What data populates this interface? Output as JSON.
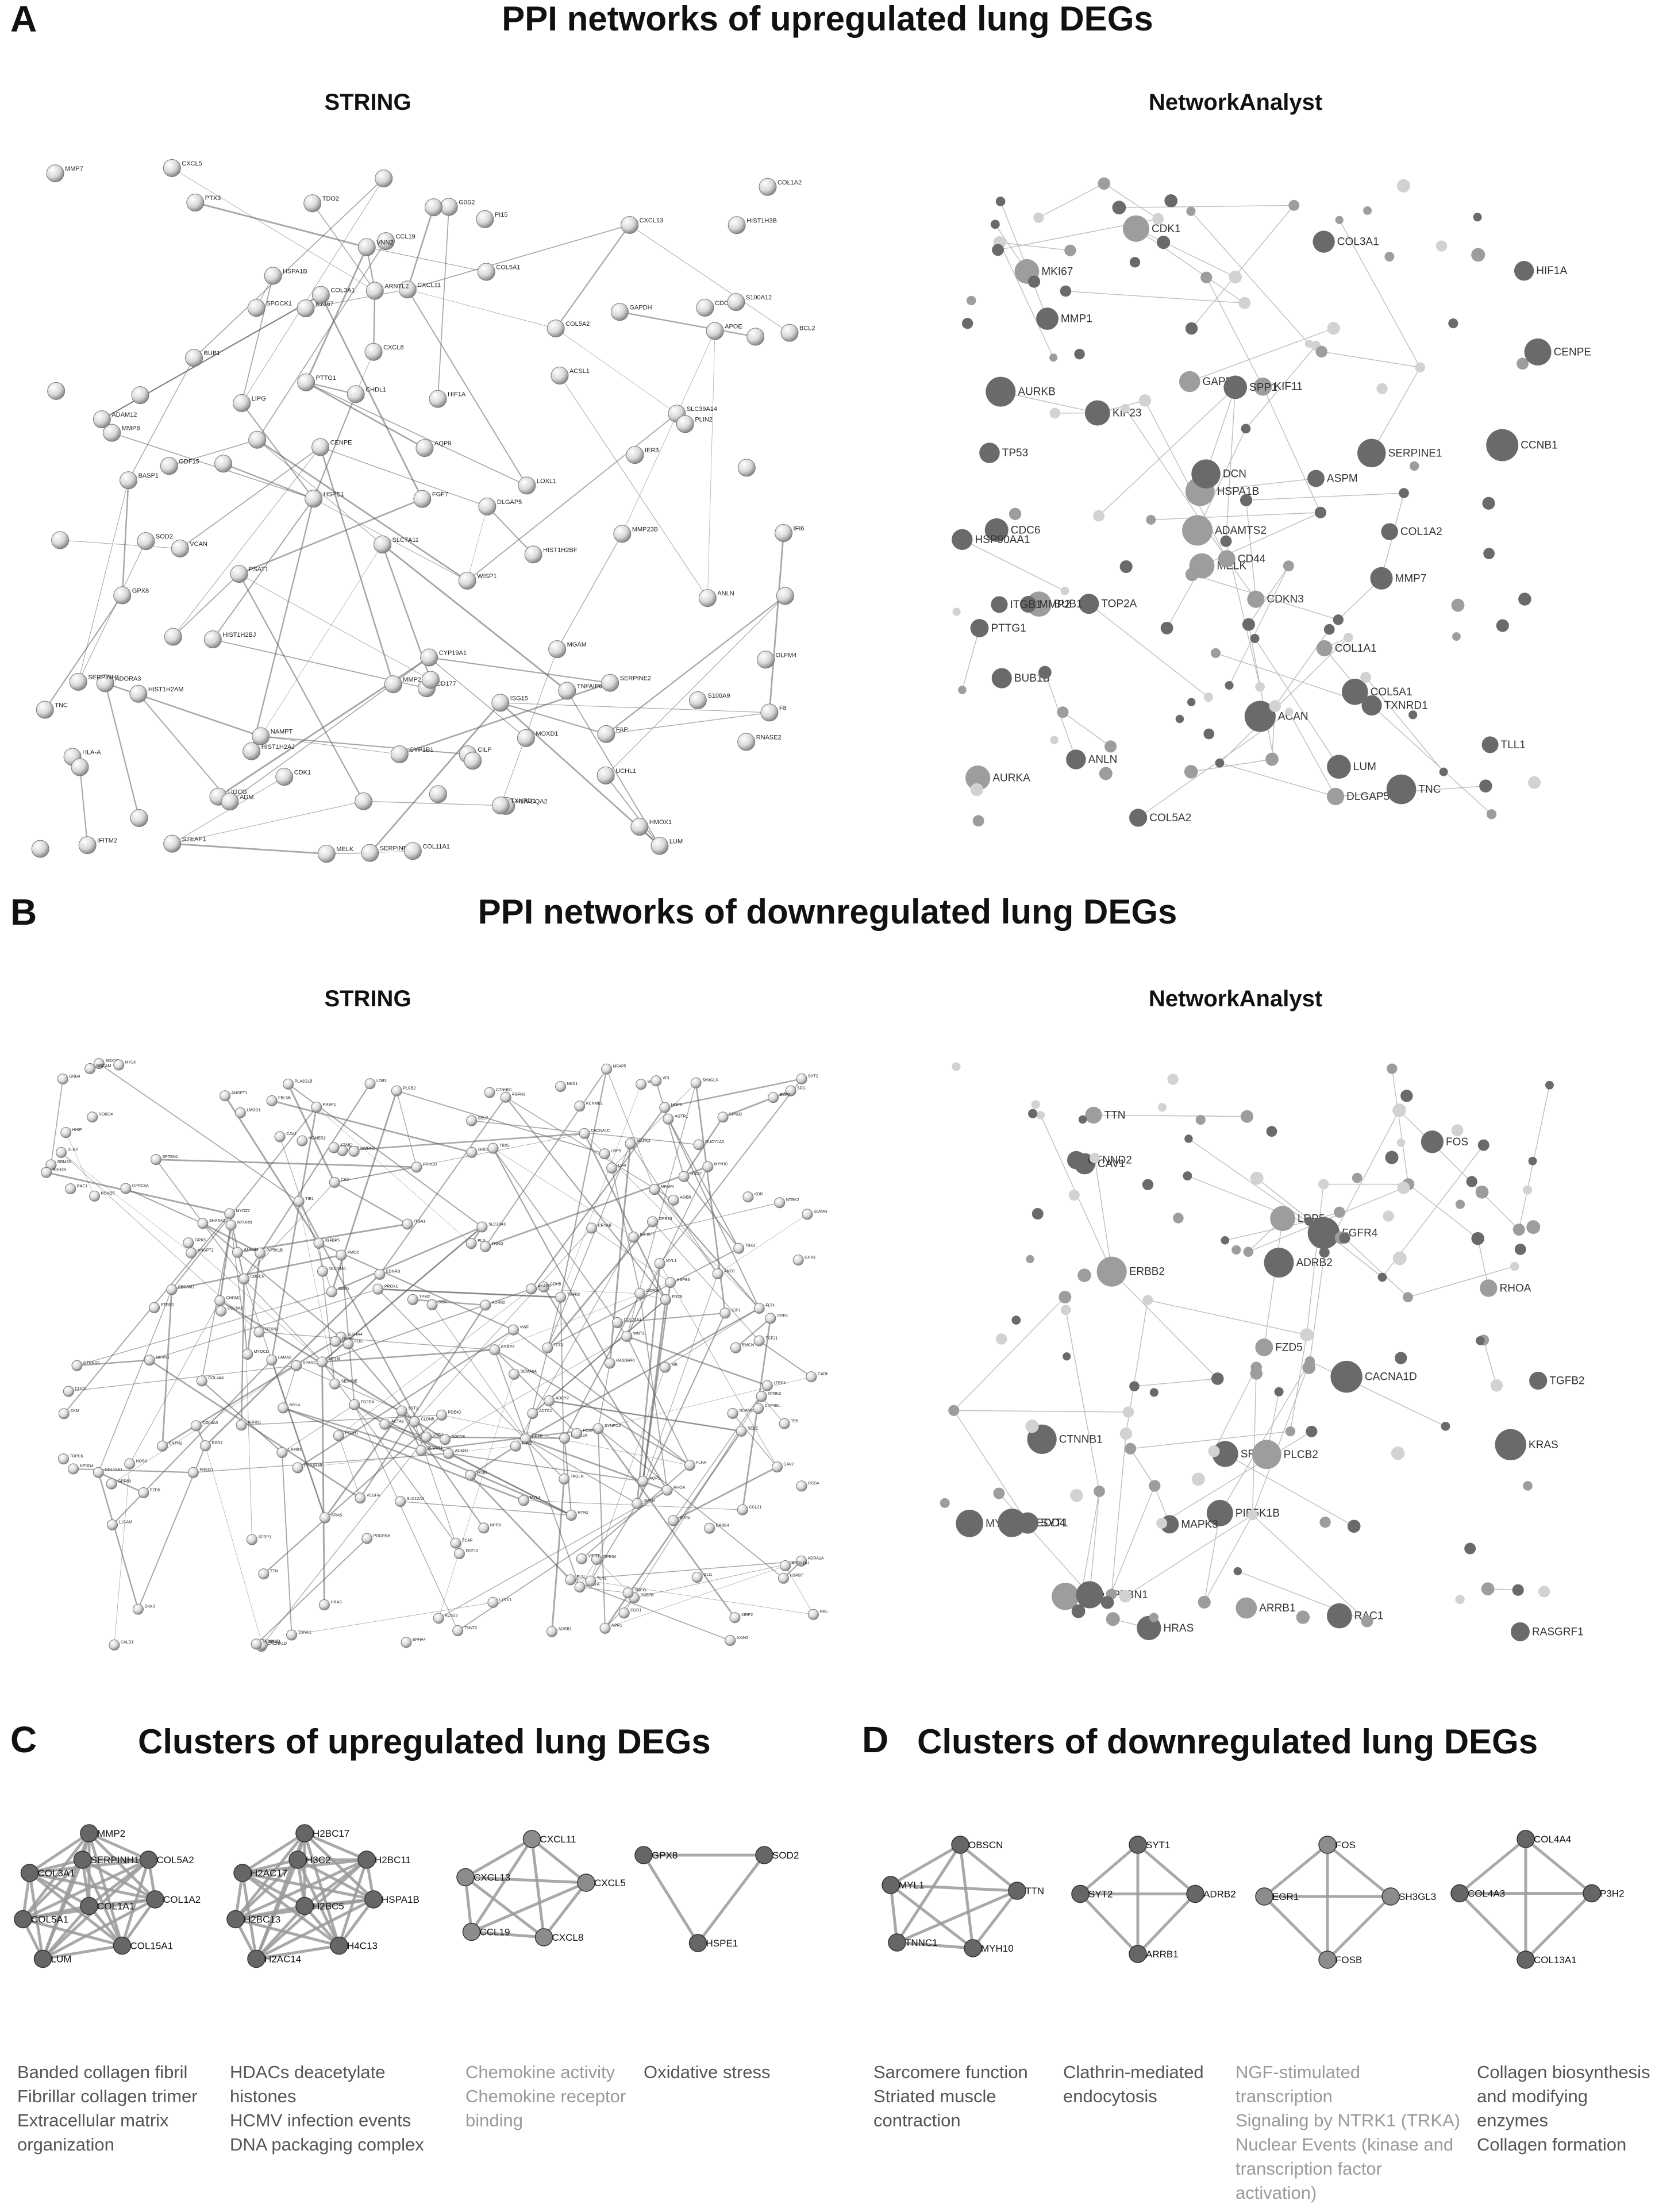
{
  "panels": {
    "A": {
      "letter": "A",
      "title": "PPI networks of upregulated lung DEGs",
      "left_title": "STRING",
      "right_title": "NetworkAnalyst"
    },
    "B": {
      "letter": "B",
      "title": "PPI networks of downregulated lung DEGs",
      "left_title": "STRING",
      "right_title": "NetworkAnalyst"
    },
    "C": {
      "letter": "C",
      "title": "Clusters of upregulated lung DEGs"
    },
    "D": {
      "letter": "D",
      "title": "Clusters of downregulated lung DEGs"
    }
  },
  "string_up_labels": [
    "UGCG",
    "HLA-DQA2",
    "HLA-A",
    "TDO2",
    "IFITM2",
    "IFI6",
    "SLC7A11",
    "ISG15",
    "IER3",
    "CYP1B1",
    "HSPE1",
    "ADORA3",
    "SLC39A14",
    "STEAP1",
    "BASP1",
    "CCL19",
    "GPX8",
    "CXCL13",
    "TXNRD1",
    "PSAT1",
    "PTTG1",
    "CYP19A1",
    "HSPA1B",
    "ANLN",
    "MELK",
    "CXCL11",
    "ADM",
    "DLGAP5",
    "GDF15",
    "CXCL5",
    "TNFAIP6",
    "SOD2",
    "UCHL1",
    "CENPE",
    "MOXD1",
    "FGF7",
    "HMOX1",
    "CDK1",
    "BUB1",
    "OLFM4",
    "PTX3",
    "NAMPT",
    "GAPDH",
    "CD177",
    "CHDL1",
    "MKI67",
    "CDC6",
    "MGAM",
    "CXCL8",
    "HIF1A",
    "MMP8",
    "MMP2",
    "S100A9",
    "HIST1H2BJ",
    "PI15",
    "FAP",
    "CILP",
    "SERPINH1",
    "SERPINE1",
    "S100A12",
    "HIST1H2AJ",
    "LUM",
    "COL1A2",
    "APOE",
    "BCL2",
    "RNASE2",
    "HIST1H2BF",
    "COL3A1",
    "MMP7",
    "HIST1H2AM",
    "ADAM12",
    "COL11A1",
    "VCAN",
    "AQP9",
    "G0S2",
    "COL5A2",
    "ARNTL2",
    "SERPINE2",
    "VNN2",
    "HIST1H3B",
    "COL5A1",
    "PLIN2",
    "LOXL1",
    "LIPG",
    "ACSL1",
    "TNC",
    "WISP1",
    "MMP23B",
    "SPOCK1",
    "F8"
  ],
  "na_up_labels": [
    "KIF23",
    "TXNRD1",
    "ANLN",
    "BUB1B",
    "TOP2A",
    "HSPA1B",
    "SERPINE1",
    "AURKB",
    "KIF11",
    "CDK1",
    "CDC6",
    "HIF1A",
    "BUB1",
    "TP53",
    "ASPM",
    "PTTG1",
    "CCNB1",
    "HSP90AA1",
    "MELK",
    "DLGAP5",
    "GAPDH",
    "CENPE",
    "MKI67",
    "AURKA",
    "CDKN3",
    "MMP2",
    "MMP7",
    "MMP1",
    "ACAN",
    "COL1A1",
    "DCN",
    "CD44",
    "TNC",
    "LUM",
    "ADAMTS2",
    "COL1A2",
    "SPP1",
    "ITGB1",
    "COL5A1",
    "TLL1",
    "COL3A1",
    "COL5A2"
  ],
  "na_down_labels": [
    "TTN",
    "MYH10",
    "ERBB2",
    "RHOA",
    "PIP5K1B",
    "RASGRF1",
    "RAC1",
    "LRP5",
    "CAV1",
    "CTNNB1",
    "KRAS",
    "FOS",
    "FZD5",
    "SRC",
    "HRAS",
    "CTNND2",
    "PLCB2",
    "EGR1",
    "SPTBN1",
    "MAPK3",
    "ARRB1",
    "NEDD4",
    "TGFB2",
    "FGFR4",
    "ADRB2",
    "SYT1",
    "CACNA1D"
  ],
  "string_down_labels": [
    "MTURN",
    "KRBP1",
    "GPR34",
    "GPR83",
    "GPRC5A",
    "GPR83",
    "SLC44A1",
    "ADCY8",
    "FOS",
    "TGFB2",
    "FZD5",
    "ERBB2",
    "CAV1",
    "CTNNB1",
    "HRAS",
    "RHOA",
    "SRC",
    "KRAS",
    "RAC1",
    "MYH10",
    "TTN",
    "EGR1",
    "LRP5",
    "SYT1",
    "ADRB2",
    "ARRB1",
    "PLCB2",
    "MAPK3",
    "NEDD4",
    "FGFR4",
    "CACNA1D",
    "SPTBN1",
    "CTNND2",
    "PIP5K1B",
    "RASGRF1",
    "COL4A4",
    "COL4A3",
    "P3H2",
    "COL13A1",
    "SYT2",
    "OBSCN",
    "MYL1",
    "TNNC1",
    "F0SB",
    "SH3GL3",
    "CDH5",
    "PECAM1",
    "EMCN",
    "TEK",
    "KDR",
    "VWF",
    "NOS3",
    "TIE1",
    "ACKR1",
    "CLDN5",
    "SELE",
    "SELP",
    "AQP1",
    "CA4",
    "EDNRB",
    "SOX17",
    "ROBO4",
    "LYVE1",
    "PROX1",
    "FLT4",
    "CCL21",
    "MMRN1",
    "TFF3",
    "STAB2",
    "SPARCL1",
    "DES",
    "ACTC1",
    "MYOCD",
    "CNN1",
    "TAGLN",
    "SMTN",
    "LMOD1",
    "SYNPO2",
    "PLN",
    "KCNMB1",
    "GUCY1A3",
    "NPR1",
    "AGTR1",
    "ADRA1A",
    "CHRM2",
    "GRIA1",
    "NRXN1",
    "CNTN1",
    "NCAM1",
    "L1CAM",
    "NRCAM",
    "CADM2",
    "PTPRD",
    "DLG2",
    "GRID2",
    "SHANK2",
    "HOMER2",
    "CAMK2A",
    "PRKCB",
    "PPP1R1B",
    "RGS4",
    "RGS7",
    "GNG2",
    "GNB4",
    "ADCY2",
    "PDE4D",
    "PDE7B",
    "AKAP6",
    "RYR2",
    "CACNA1C",
    "KCNJ3",
    "KCNQ5",
    "SCN7A",
    "ANO1",
    "TRPC6",
    "PIEZO2",
    "ITPR1",
    "ATP2B4",
    "SLC8A1",
    "SLC4A4",
    "SLC12A2",
    "SLC26A3",
    "CFTR",
    "SCNN1G",
    "CLIC5",
    "AGER",
    "HOPX",
    "CAV2",
    "EMP2",
    "RTKN2",
    "SEMA3B",
    "SEMA3E",
    "SEMA6A",
    "EFNB2",
    "EPHA4",
    "NTRK2",
    "NTRK3",
    "ERBB4",
    "PDGFRA",
    "FGFR2",
    "FGF10",
    "WNT2",
    "SFRP1",
    "DKK3",
    "FRZB",
    "NKD1",
    "AXIN2",
    "TCF21",
    "FOXF1",
    "TBX4",
    "TBX5",
    "HHIP",
    "PTCH1",
    "GLI1",
    "IGF1",
    "IGFBP5",
    "IGFBP7",
    "ANGPT1",
    "ANGPT2",
    "VEGFA",
    "VIPR1",
    "ADRB1",
    "GRK5",
    "PRKG1",
    "MYLK",
    "ACTA2",
    "CALD1",
    "TPM2",
    "FLNA",
    "VCL",
    "TLN1",
    "ITGA8",
    "ITGA1",
    "LAMA2",
    "LAMB1",
    "COL6A6",
    "COL21A1",
    "ELN",
    "FBLN5",
    "MFAP4",
    "LTBP4",
    "HSPB7",
    "CRYAB",
    "SNCG",
    "CKM",
    "MB",
    "TNNT2",
    "TNNI3",
    "MYL3",
    "MYL4",
    "NPPA",
    "NPPB",
    "CORIN",
    "RBM20",
    "CSRP3",
    "LDB3",
    "TCAP",
    "MYOZ2",
    "FHL2",
    "XIRP2",
    "SMPX",
    "HSPB6",
    "ALDH1A1",
    "CYP4B1",
    "FMO2",
    "GPX3",
    "MT1M",
    "ADH1B",
    "PLA2G1B",
    "MFAP5",
    "CA2"
  ],
  "clusters_up": [
    {
      "id": "c1",
      "nodes": [
        "MMP2",
        "COL5A2",
        "COL3A1",
        "SERPINH1",
        "COL1A2",
        "COL5A1",
        "COL1A1",
        "LUM",
        "COL15A1"
      ],
      "annotations": [
        "Banded collagen fibril",
        "Fibrillar collagen trimer",
        "Extracellular matrix",
        "organization"
      ],
      "muted": false
    },
    {
      "id": "c2",
      "nodes": [
        "H2BC17",
        "H2BC11",
        "H2AC17",
        "H3C2",
        "HSPA1B",
        "H2BC13",
        "H2BC5",
        "H2AC14",
        "H4C13"
      ],
      "annotations": [
        "HDACs deacetylate",
        "histones",
        "HCMV infection events",
        "DNA packaging complex"
      ],
      "muted": false
    },
    {
      "id": "c3",
      "nodes": [
        "CXCL11",
        "CXCL13",
        "CXCL5",
        "CCL19",
        "CXCL8"
      ],
      "annotations": [
        "Chemokine activity",
        "Chemokine receptor",
        "binding"
      ],
      "muted": true
    },
    {
      "id": "c4",
      "nodes": [
        "GPX8",
        "SOD2",
        "HSPE1"
      ],
      "annotations": [
        "Oxidative stress"
      ],
      "muted": false
    }
  ],
  "clusters_down": [
    {
      "id": "d1",
      "nodes": [
        "OBSCN",
        "MYL1",
        "TTN",
        "TNNC1",
        "MYH10"
      ],
      "annotations": [
        "Sarcomere function",
        "Striated muscle",
        "contraction"
      ],
      "muted": false
    },
    {
      "id": "d2",
      "nodes": [
        "SYT1",
        "SYT2",
        "ADRB2",
        "ARRB1"
      ],
      "annotations": [
        "Clathrin-mediated",
        "endocytosis"
      ],
      "muted": false
    },
    {
      "id": "d3",
      "nodes": [
        "FOS",
        "EGR1",
        "SH3GL3",
        "FOSB"
      ],
      "annotations": [
        "NGF-stimulated",
        "transcription",
        "Signaling by NTRK1 (TRKA)",
        "Nuclear Events (kinase and",
        "transcription factor",
        "activation)"
      ],
      "muted": true
    },
    {
      "id": "d4",
      "nodes": [
        "COL4A4",
        "COL4A3",
        "P3H2",
        "COL13A1"
      ],
      "annotations": [
        "Collagen biosynthesis",
        "and modifying",
        "enzymes",
        "Collagen formation"
      ],
      "muted": false
    }
  ],
  "colors": {
    "dark_node": "#6a6a6a",
    "mid_node": "#9d9d9d",
    "light_node": "#d2d2d2",
    "edge": "#bdbdbd",
    "string_node": "#d9d9d9",
    "string_edge": "#5e5e5e"
  }
}
